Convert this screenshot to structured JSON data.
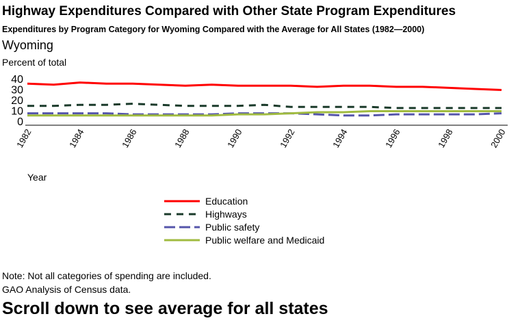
{
  "title": "Highway Expenditures Compared with Other State Program Expenditures",
  "subtitle": "Expenditures by Program Category for Wyoming Compared with the Average for All States (1982—2000)",
  "state": "Wyoming",
  "note": "Note:  Not all categories of spending are included.",
  "source": "GAO Analysis of Census data.",
  "scroll_hint": "Scroll down to see average for all states",
  "chart_data": {
    "type": "line",
    "title": "",
    "xlabel": "Year",
    "ylabel": "Percent of total",
    "xlim": [
      1982,
      2000
    ],
    "ylim": [
      0,
      40
    ],
    "yticks": [
      0,
      10,
      20,
      30,
      40
    ],
    "xticks": [
      1982,
      1984,
      1986,
      1988,
      1990,
      1992,
      1994,
      1996,
      1998,
      2000
    ],
    "legend_position": "bottom",
    "x": [
      1982,
      1983,
      1984,
      1985,
      1986,
      1987,
      1988,
      1989,
      1990,
      1991,
      1992,
      1993,
      1994,
      1995,
      1996,
      1997,
      1998,
      1999,
      2000
    ],
    "series": [
      {
        "name": "Education",
        "color": "#ff0000",
        "dash": "solid",
        "values": [
          36,
          35,
          37,
          36,
          36,
          35,
          34,
          35,
          34,
          34,
          34,
          33,
          34,
          34,
          33,
          33,
          32,
          31,
          30
        ]
      },
      {
        "name": "Highways",
        "color": "#1a3a2a",
        "dash": "dashed",
        "values": [
          15,
          15,
          16,
          16,
          17,
          16,
          15,
          15,
          15,
          16,
          14,
          14,
          14,
          14,
          13,
          13,
          13,
          13,
          13
        ]
      },
      {
        "name": "Public safety",
        "color": "#5555aa",
        "dash": "longdash",
        "values": [
          8,
          8,
          8,
          8,
          7,
          7,
          7,
          7,
          8,
          8,
          8,
          7,
          6,
          6,
          7,
          7,
          7,
          7,
          8
        ]
      },
      {
        "name": "Public welfare and Medicaid",
        "color": "#a0bb40",
        "dash": "solid",
        "values": [
          6,
          6,
          6,
          6,
          6,
          6,
          6,
          6,
          7,
          7,
          8,
          9,
          9,
          10,
          10,
          10,
          10,
          10,
          10
        ]
      }
    ]
  }
}
